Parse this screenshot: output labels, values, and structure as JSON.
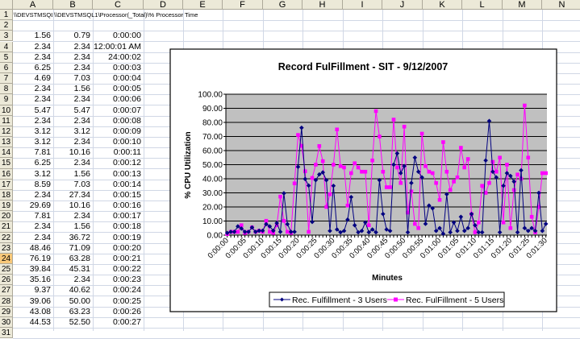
{
  "sheet": {
    "columns": [
      "A",
      "B",
      "C",
      "D",
      "E",
      "F",
      "G",
      "H",
      "I",
      "J",
      "K",
      "L",
      "M",
      "N"
    ],
    "row_numbers": [
      1,
      2,
      3,
      4,
      5,
      6,
      7,
      8,
      9,
      10,
      11,
      12,
      13,
      14,
      15,
      16,
      17,
      18,
      19,
      20,
      21,
      22,
      23,
      24,
      25,
      26,
      27,
      28,
      29,
      30,
      31
    ],
    "selected_row": 24,
    "header_cells": {
      "A1": "\\\\DEVSTMSQL",
      "B1": "\\\\DEVSTMSQL1\\Processor(_Total)\\% Processor Time"
    },
    "rows": [
      {
        "row": 3,
        "A": "1.56",
        "B": "0.79",
        "C": "0:00:00"
      },
      {
        "row": 4,
        "A": "2.34",
        "B": "2.34",
        "C": "12:00:01 AM"
      },
      {
        "row": 5,
        "A": "2.34",
        "B": "2.34",
        "C": "24:00:02"
      },
      {
        "row": 6,
        "A": "6.25",
        "B": "2.34",
        "C": "0:00:03"
      },
      {
        "row": 7,
        "A": "4.69",
        "B": "7.03",
        "C": "0:00:04"
      },
      {
        "row": 8,
        "A": "2.34",
        "B": "1.56",
        "C": "0:00:05"
      },
      {
        "row": 9,
        "A": "2.34",
        "B": "2.34",
        "C": "0:00:06"
      },
      {
        "row": 10,
        "A": "5.47",
        "B": "5.47",
        "C": "0:00:07"
      },
      {
        "row": 11,
        "A": "2.34",
        "B": "2.34",
        "C": "0:00:08"
      },
      {
        "row": 12,
        "A": "3.12",
        "B": "3.12",
        "C": "0:00:09"
      },
      {
        "row": 13,
        "A": "3.12",
        "B": "2.34",
        "C": "0:00:10"
      },
      {
        "row": 14,
        "A": "7.81",
        "B": "10.16",
        "C": "0:00:11"
      },
      {
        "row": 15,
        "A": "6.25",
        "B": "2.34",
        "C": "0:00:12"
      },
      {
        "row": 16,
        "A": "3.12",
        "B": "1.56",
        "C": "0:00:13"
      },
      {
        "row": 17,
        "A": "8.59",
        "B": "7.03",
        "C": "0:00:14"
      },
      {
        "row": 18,
        "A": "2.34",
        "B": "27.34",
        "C": "0:00:15"
      },
      {
        "row": 19,
        "A": "29.69",
        "B": "10.16",
        "C": "0:00:16"
      },
      {
        "row": 20,
        "A": "7.81",
        "B": "2.34",
        "C": "0:00:17"
      },
      {
        "row": 21,
        "A": "2.34",
        "B": "1.56",
        "C": "0:00:18"
      },
      {
        "row": 22,
        "A": "2.34",
        "B": "36.72",
        "C": "0:00:19"
      },
      {
        "row": 23,
        "A": "48.46",
        "B": "71.09",
        "C": "0:00:20"
      },
      {
        "row": 24,
        "A": "76.19",
        "B": "63.28",
        "C": "0:00:21"
      },
      {
        "row": 25,
        "A": "39.84",
        "B": "45.31",
        "C": "0:00:22"
      },
      {
        "row": 26,
        "A": "35.16",
        "B": "2.34",
        "C": "0:00:23"
      },
      {
        "row": 27,
        "A": "9.37",
        "B": "40.62",
        "C": "0:00:24"
      },
      {
        "row": 28,
        "A": "39.06",
        "B": "50.00",
        "C": "0:00:25"
      },
      {
        "row": 29,
        "A": "43.08",
        "B": "63.23",
        "C": "0:00:26"
      },
      {
        "row": 30,
        "A": "44.53",
        "B": "52.50",
        "C": "0:00:27"
      }
    ]
  },
  "chart_data": {
    "type": "line",
    "title": "Record FulFillment - SIT - 9/12/2007",
    "xlabel": "Minutes",
    "ylabel": "% CPU Utilization",
    "ylim": [
      0,
      100
    ],
    "y_ticks": [
      "0.00",
      "10.00",
      "20.00",
      "30.00",
      "40.00",
      "50.00",
      "60.00",
      "70.00",
      "80.00",
      "90.00",
      "100.00"
    ],
    "x_tick_labels": [
      "0:00:00",
      "0:00:05",
      "0:00:10",
      "0:00:15",
      "0:00:20",
      "0:00:25",
      "0:00:30",
      "0:00:35",
      "0:00:40",
      "0:00:45",
      "0:00:50",
      "0:00:55",
      "0:01:00",
      "0:01:05",
      "0:01:10",
      "0:01:15",
      "0:01:20",
      "0:01:25",
      "0:01:30"
    ],
    "x_tick_every": 5,
    "grid": true,
    "plot_background": "#c0c0c0",
    "legend_position": "bottom",
    "series": [
      {
        "name": "Rec. Fulfillment - 3 Users",
        "color": "#000080",
        "marker": "diamond",
        "values": [
          1.56,
          2.34,
          2.34,
          6.25,
          4.69,
          2.34,
          2.34,
          5.47,
          2.34,
          3.12,
          3.12,
          7.81,
          6.25,
          3.12,
          8.59,
          2.34,
          29.69,
          7.81,
          2.34,
          2.34,
          48.46,
          76.19,
          39.84,
          35.16,
          9.37,
          39.06,
          43.08,
          44.53,
          39,
          3,
          35,
          4,
          2,
          3,
          11,
          27,
          7,
          2,
          3,
          9,
          2,
          4,
          2,
          39,
          15,
          4,
          3,
          50,
          58,
          44,
          49,
          2,
          37,
          55,
          45,
          41,
          8,
          21,
          19,
          3,
          5,
          1,
          29,
          2,
          9,
          3,
          13,
          3,
          5,
          15,
          7,
          2,
          2,
          53,
          81,
          45,
          41,
          2,
          35,
          44,
          42,
          38,
          2,
          46,
          5,
          3,
          5,
          3,
          30,
          3,
          8
        ]
      },
      {
        "name": "Rec. FulFillment - 5 Users",
        "color": "#ff00ff",
        "marker": "square",
        "values": [
          0.79,
          2.34,
          2.34,
          2.34,
          7.03,
          1.56,
          2.34,
          5.47,
          2.34,
          3.12,
          2.34,
          10.16,
          2.34,
          1.56,
          7.03,
          27.34,
          10.16,
          2.34,
          1.56,
          36.72,
          71.09,
          63.28,
          45.31,
          2.34,
          40.62,
          50.0,
          63.23,
          52.5,
          20,
          29,
          50,
          75,
          49,
          48,
          21,
          44,
          51,
          48,
          45,
          45,
          7,
          53,
          88,
          70,
          45,
          34,
          34,
          82,
          48,
          37,
          77,
          16,
          31,
          8,
          5,
          72,
          49,
          45,
          44,
          37,
          25,
          66,
          45,
          32,
          38,
          41,
          62,
          48,
          54,
          15,
          2,
          9,
          35,
          30,
          37,
          52,
          45,
          55,
          9,
          50,
          5,
          32,
          43,
          40,
          92,
          55,
          13,
          2,
          20,
          44,
          44
        ]
      }
    ]
  }
}
